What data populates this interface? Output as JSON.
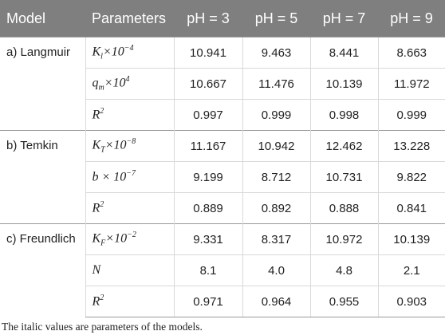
{
  "table": {
    "header": [
      "Model",
      "Parameters",
      "pH = 3",
      "pH = 5",
      "pH = 7",
      "pH = 9"
    ],
    "groups": [
      {
        "model": "a) Langmuir",
        "rows": [
          {
            "parameter": {
              "main": "K",
              "sub": "l",
              "times": "×10",
              "sup": "−4"
            },
            "values": [
              "10.941",
              "9.463",
              "8.441",
              "8.663"
            ]
          },
          {
            "parameter": {
              "main": "q",
              "sub": "m",
              "times": "×10",
              "sup": "4"
            },
            "values": [
              "10.667",
              "11.476",
              "10.139",
              "11.972"
            ]
          },
          {
            "parameter": {
              "main": "R",
              "sup": "2"
            },
            "values": [
              "0.997",
              "0.999",
              "0.998",
              "0.999"
            ]
          }
        ]
      },
      {
        "model": "b) Temkin",
        "rows": [
          {
            "parameter": {
              "main": "K",
              "sub": "T",
              "times": "×10",
              "sup": "−8"
            },
            "values": [
              "11.167",
              "10.942",
              "12.462",
              "13.228"
            ]
          },
          {
            "parameter": {
              "main": "b × 10",
              "sup": "−7"
            },
            "values": [
              "9.199",
              "8.712",
              "10.731",
              "9.822"
            ]
          },
          {
            "parameter": {
              "main": "R",
              "sup": "2"
            },
            "values": [
              "0.889",
              "0.892",
              "0.888",
              "0.841"
            ]
          }
        ]
      },
      {
        "model": "c) Freundlich",
        "rows": [
          {
            "parameter": {
              "main": "K",
              "sub": "F",
              "times": "×10",
              "sup": "−2"
            },
            "values": [
              "9.331",
              "8.317",
              "10.972",
              "10.139"
            ]
          },
          {
            "parameter": {
              "main": "N"
            },
            "values": [
              "8.1",
              "4.0",
              "4.8",
              "2.1"
            ]
          },
          {
            "parameter": {
              "main": "R",
              "sup": "2"
            },
            "values": [
              "0.971",
              "0.964",
              "0.955",
              "0.903"
            ]
          }
        ]
      }
    ]
  },
  "footnote": "The italic values are parameters of the models."
}
